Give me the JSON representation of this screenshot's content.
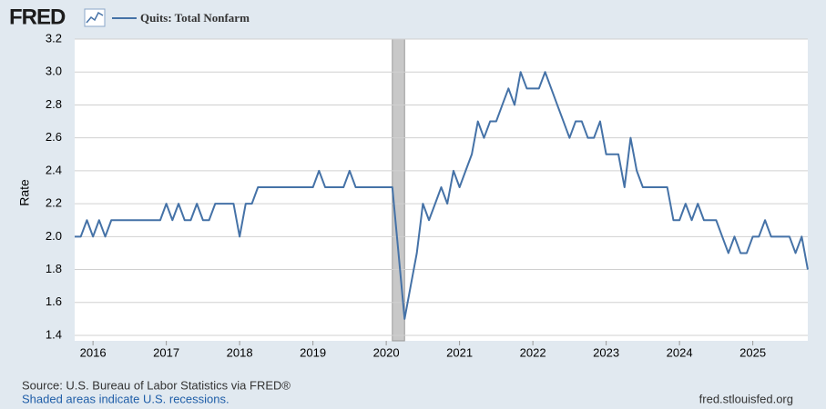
{
  "chart_data": {
    "type": "line",
    "logo": "FRED",
    "ylabel": "Rate",
    "source": "Source: U.S. Bureau of Labor Statistics via FRED®",
    "note": "Shaded areas indicate U.S. recessions.",
    "url": "fred.stlouisfed.org",
    "x": [
      2015.75,
      2015.833,
      2015.917,
      2016,
      2016.083,
      2016.167,
      2016.25,
      2016.333,
      2016.417,
      2016.5,
      2016.583,
      2016.667,
      2016.75,
      2016.833,
      2016.917,
      2017,
      2017.083,
      2017.167,
      2017.25,
      2017.333,
      2017.417,
      2017.5,
      2017.583,
      2017.667,
      2017.75,
      2017.833,
      2017.917,
      2018,
      2018.083,
      2018.167,
      2018.25,
      2018.333,
      2018.417,
      2018.5,
      2018.583,
      2018.667,
      2018.75,
      2018.833,
      2018.917,
      2019,
      2019.083,
      2019.167,
      2019.25,
      2019.333,
      2019.417,
      2019.5,
      2019.583,
      2019.667,
      2019.75,
      2019.833,
      2019.917,
      2020,
      2020.083,
      2020.167,
      2020.25,
      2020.333,
      2020.417,
      2020.5,
      2020.583,
      2020.667,
      2020.75,
      2020.833,
      2020.917,
      2021,
      2021.083,
      2021.167,
      2021.25,
      2021.333,
      2021.417,
      2021.5,
      2021.583,
      2021.667,
      2021.75,
      2021.833,
      2021.917,
      2022,
      2022.083,
      2022.167,
      2022.25,
      2022.333,
      2022.417,
      2022.5,
      2022.583,
      2022.667,
      2022.75,
      2022.833,
      2022.917,
      2023,
      2023.083,
      2023.167,
      2023.25,
      2023.333,
      2023.417,
      2023.5,
      2023.583,
      2023.667,
      2023.75,
      2023.833,
      2023.917,
      2024,
      2024.083,
      2024.167,
      2024.25,
      2024.333,
      2024.417,
      2024.5,
      2024.583,
      2024.667,
      2024.75,
      2024.833,
      2024.917,
      2025,
      2025.083,
      2025.167,
      2025.25,
      2025.333,
      2025.417,
      2025.5,
      2025.583,
      2025.667,
      2025.75
    ],
    "series": [
      {
        "name": "Quits: Total Nonfarm",
        "color": "#4572a7",
        "values": [
          2.0,
          2.0,
          2.1,
          2.0,
          2.1,
          2.0,
          2.1,
          2.1,
          2.1,
          2.1,
          2.1,
          2.1,
          2.1,
          2.1,
          2.1,
          2.2,
          2.1,
          2.2,
          2.1,
          2.1,
          2.2,
          2.1,
          2.1,
          2.2,
          2.2,
          2.2,
          2.2,
          2.0,
          2.2,
          2.2,
          2.3,
          2.3,
          2.3,
          2.3,
          2.3,
          2.3,
          2.3,
          2.3,
          2.3,
          2.3,
          2.4,
          2.3,
          2.3,
          2.3,
          2.3,
          2.4,
          2.3,
          2.3,
          2.3,
          2.3,
          2.3,
          2.3,
          2.3,
          1.9,
          1.5,
          1.7,
          1.9,
          2.2,
          2.1,
          2.2,
          2.3,
          2.2,
          2.4,
          2.3,
          2.4,
          2.5,
          2.7,
          2.6,
          2.7,
          2.7,
          2.8,
          2.9,
          2.8,
          3.0,
          2.9,
          2.9,
          2.9,
          3.0,
          2.9,
          2.8,
          2.7,
          2.6,
          2.7,
          2.7,
          2.6,
          2.6,
          2.7,
          2.5,
          2.5,
          2.5,
          2.3,
          2.6,
          2.4,
          2.3,
          2.3,
          2.3,
          2.3,
          2.3,
          2.1,
          2.1,
          2.2,
          2.1,
          2.2,
          2.1,
          2.1,
          2.1,
          2.0,
          1.9,
          2.0,
          1.9,
          1.9,
          2.0,
          2.0,
          2.1,
          2.0,
          2.0,
          2.0,
          2.0,
          1.9,
          2.0,
          1.8
        ]
      }
    ],
    "recessions": [
      [
        2020.083,
        2020.25
      ]
    ],
    "xlim": [
      2015.75,
      2025.75
    ],
    "xticks": [
      2016,
      2017,
      2018,
      2019,
      2020,
      2021,
      2022,
      2023,
      2024,
      2025
    ],
    "ylim": [
      1.4,
      3.2
    ],
    "yticks": [
      {
        "value": 1.4,
        "label": "1.4"
      },
      {
        "value": 1.6,
        "label": "1.6"
      },
      {
        "value": 1.8,
        "label": "1.8"
      },
      {
        "value": 2.0,
        "label": "2.0"
      },
      {
        "value": 2.2,
        "label": "2.2"
      },
      {
        "value": 2.4,
        "label": "2.4"
      },
      {
        "value": 2.6,
        "label": "2.6"
      },
      {
        "value": 2.8,
        "label": "2.8"
      },
      {
        "value": 3.0,
        "label": "3.0"
      },
      {
        "value": 3.2,
        "label": "3.2"
      }
    ],
    "grid": true
  }
}
